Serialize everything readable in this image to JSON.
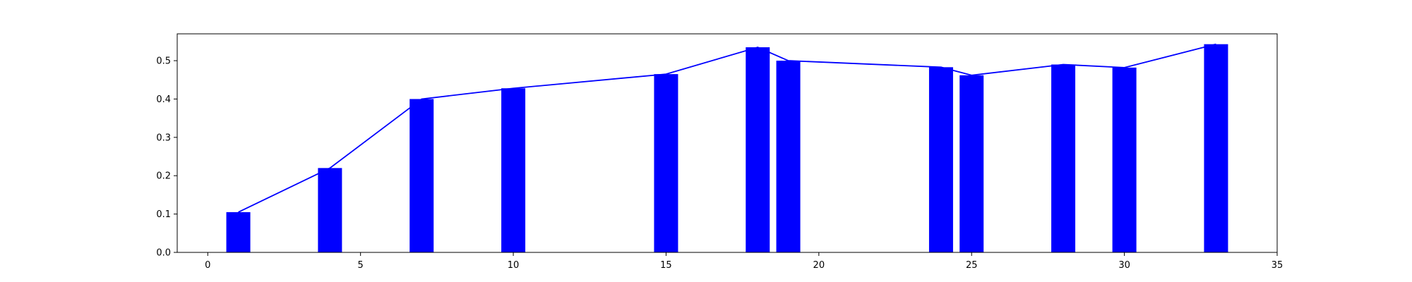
{
  "chart_data": {
    "type": "bar",
    "x": [
      1,
      4,
      7,
      10,
      15,
      18,
      19,
      24,
      25,
      28,
      30,
      33
    ],
    "values": [
      0.105,
      0.22,
      0.4,
      0.428,
      0.465,
      0.535,
      0.5,
      0.483,
      0.462,
      0.49,
      0.482,
      0.543
    ],
    "line_overlay": true,
    "title": "",
    "xlabel": "",
    "ylabel": "",
    "xlim": [
      -1,
      35
    ],
    "ylim": [
      0,
      0.57
    ],
    "xticks": [
      0,
      5,
      10,
      15,
      20,
      25,
      30,
      35
    ],
    "yticks": [
      0.0,
      0.1,
      0.2,
      0.3,
      0.4,
      0.5
    ],
    "xtick_labels": [
      "0",
      "5",
      "10",
      "15",
      "20",
      "25",
      "30",
      "35"
    ],
    "ytick_labels": [
      "0.0",
      "0.1",
      "0.2",
      "0.3",
      "0.4",
      "0.5"
    ],
    "grid": false,
    "legend": "none",
    "colors": {
      "bar": "#0000ff",
      "line": "#0000ff",
      "axes": "#000000"
    }
  }
}
